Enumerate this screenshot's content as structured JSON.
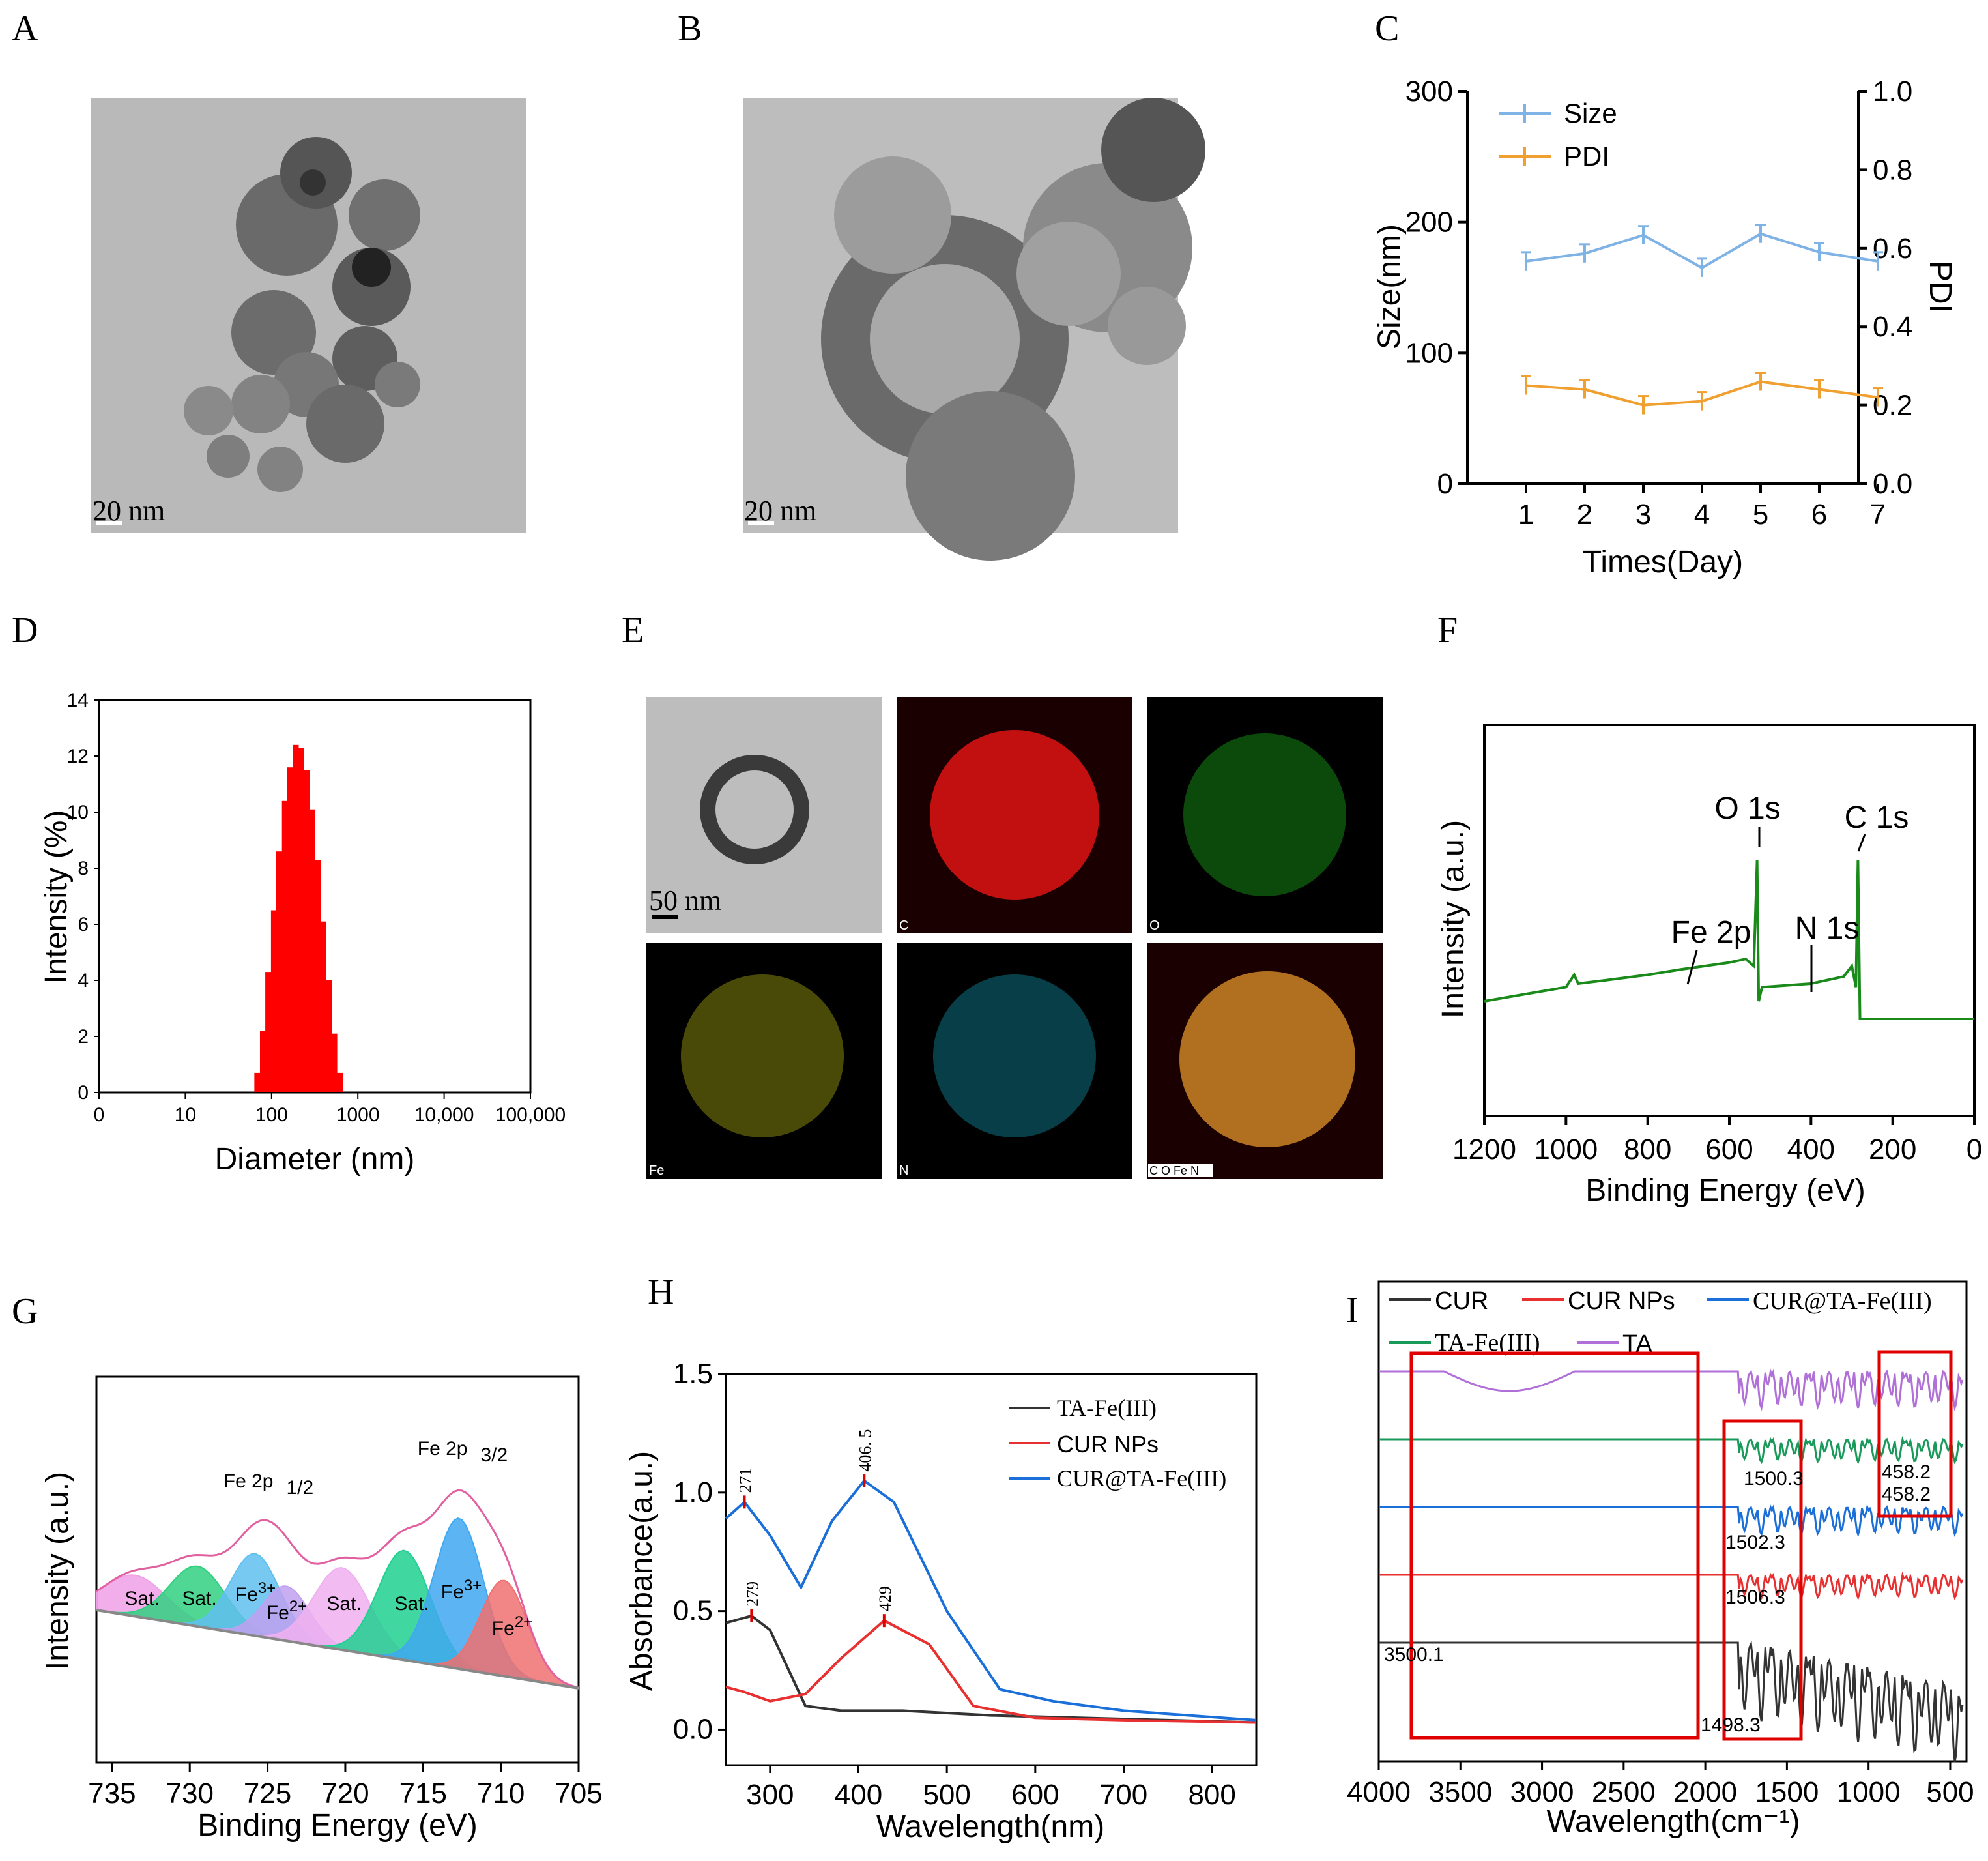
{
  "panels": {
    "A": {
      "letter": "A",
      "scale_bar": "20 nm"
    },
    "B": {
      "letter": "B",
      "scale_bar": "20 nm"
    },
    "C": {
      "letter": "C"
    },
    "D": {
      "letter": "D"
    },
    "E": {
      "letter": "E",
      "scale_bar": "50 nm",
      "maps": [
        "C",
        "O",
        "Fe",
        "N",
        "C O Fe N"
      ]
    },
    "F": {
      "letter": "F"
    },
    "G": {
      "letter": "G"
    },
    "H": {
      "letter": "H"
    },
    "I": {
      "letter": "I"
    }
  },
  "colors": {
    "size_line": "#7fb2e5",
    "pdi_line": "#f0a030",
    "dls_bar": "#ff0000",
    "xps_green": "#1a8a1a",
    "black": "#333333",
    "red": "#e83030",
    "blue": "#1a6fd8",
    "green": "#1a9a5a",
    "purple": "#b070d8",
    "box_red": "#e00000"
  },
  "chart_data": [
    {
      "panel": "C",
      "type": "line",
      "x": [
        1,
        2,
        3,
        4,
        5,
        6,
        7
      ],
      "xlabel": "Times(Day)",
      "ylabel": "Size(nm)",
      "y2label": "PDI",
      "ylim": [
        0,
        300
      ],
      "y2lim": [
        0,
        1.0
      ],
      "yticks": [
        "0",
        "100",
        "200",
        "300"
      ],
      "y2ticks": [
        "0.0",
        "0.2",
        "0.4",
        "0.6",
        "0.8",
        "1.0"
      ],
      "xticks": [
        "1",
        "2",
        "3",
        "4",
        "5",
        "6",
        "7"
      ],
      "series": [
        {
          "name": "Size",
          "axis": "left",
          "values": [
            170,
            176,
            190,
            165,
            191,
            177,
            170
          ]
        },
        {
          "name": "PDI",
          "axis": "right",
          "values": [
            0.25,
            0.24,
            0.2,
            0.21,
            0.26,
            0.24,
            0.22
          ]
        }
      ]
    },
    {
      "panel": "D",
      "type": "bar",
      "xlabel": "Diameter (nm)",
      "ylabel": "Intensity (%)",
      "xscale": "log",
      "xlim": [
        1,
        100000
      ],
      "ylim": [
        0,
        14
      ],
      "xticks": [
        "0",
        "10",
        "100",
        "1000",
        "10,000",
        "100,000"
      ],
      "yticks": [
        "0",
        "2",
        "4",
        "6",
        "8",
        "10",
        "12",
        "14"
      ],
      "x": [
        68,
        79,
        91,
        106,
        122,
        142,
        164,
        190,
        220,
        255,
        295,
        342,
        396,
        459,
        531,
        615
      ],
      "values": [
        0.7,
        2.2,
        4.3,
        6.5,
        8.6,
        10.4,
        11.6,
        12.4,
        12.3,
        11.5,
        10.1,
        8.3,
        6.1,
        4.0,
        2.1,
        0.7
      ]
    },
    {
      "panel": "F",
      "type": "line",
      "xlabel": "Binding Energy (eV)",
      "ylabel": "Intensity (a.u.)",
      "xlim": [
        1200,
        0
      ],
      "xticks": [
        "1200",
        "1000",
        "800",
        "600",
        "400",
        "200",
        "0"
      ],
      "annotations": [
        "O 1s",
        "C 1s",
        "Fe 2p",
        "N 1s"
      ],
      "x": [
        1200,
        1100,
        1000,
        980,
        970,
        900,
        800,
        720,
        600,
        560,
        540,
        532,
        528,
        520,
        400,
        320,
        300,
        290,
        285,
        280,
        200,
        100,
        0
      ],
      "values": [
        20,
        24,
        28,
        35,
        30,
        32,
        35,
        38,
        42,
        44,
        40,
        100,
        20,
        28,
        30,
        34,
        40,
        28,
        100,
        10,
        10,
        10,
        10
      ]
    },
    {
      "panel": "G",
      "type": "area",
      "xlabel": "Binding Energy (eV)",
      "ylabel": "Intensity (a.u.)",
      "xlim": [
        736,
        705
      ],
      "xticks": [
        "735",
        "730",
        "725",
        "720",
        "715",
        "710",
        "705"
      ],
      "peak_labels": [
        "Sat.",
        "Sat.",
        "Fe",
        "Fe",
        "Sat.",
        "Sat.",
        "Fe",
        "Fe"
      ],
      "region_labels": [
        "Fe 2p",
        "1/2",
        "Fe 2p",
        "3/2"
      ],
      "superscripts": [
        "3+",
        "2+",
        "3+",
        "2+"
      ],
      "components": [
        {
          "name": "Sat.",
          "center": 733.5,
          "height": 0.15,
          "width": 2.0,
          "color": "#f0a0e8"
        },
        {
          "name": "Sat.",
          "center": 729.5,
          "height": 0.22,
          "width": 1.8,
          "color": "#30d080"
        },
        {
          "name": "Fe3+",
          "center": 725.8,
          "height": 0.3,
          "width": 1.6,
          "color": "#60c0f0"
        },
        {
          "name": "Fe2+",
          "center": 723.8,
          "height": 0.2,
          "width": 1.5,
          "color": "#c0a0f0"
        },
        {
          "name": "Sat.",
          "center": 720.2,
          "height": 0.3,
          "width": 1.8,
          "color": "#f0b0f0"
        },
        {
          "name": "Sat.",
          "center": 716.2,
          "height": 0.4,
          "width": 1.7,
          "color": "#20d090"
        },
        {
          "name": "Fe3+",
          "center": 712.7,
          "height": 0.55,
          "width": 1.6,
          "color": "#40a8f0"
        },
        {
          "name": "Fe2+",
          "center": 709.8,
          "height": 0.35,
          "width": 1.5,
          "color": "#f07070"
        }
      ]
    },
    {
      "panel": "H",
      "type": "line",
      "xlabel": "Wavelength(nm)",
      "ylabel": "Absorbance(a.u.)",
      "xlim": [
        250,
        850
      ],
      "ylim": [
        -0.15,
        1.5
      ],
      "xticks": [
        "300",
        "400",
        "500",
        "600",
        "700",
        "800"
      ],
      "yticks": [
        "0.0",
        "0.5",
        "1.0",
        "1.5"
      ],
      "peaks": [
        "271",
        "406. 5",
        "279",
        "429"
      ],
      "series": [
        {
          "name": "TA-Fe(III)",
          "x": [
            250,
            279,
            300,
            340,
            380,
            450,
            550,
            650,
            750,
            850
          ],
          "values": [
            0.45,
            0.48,
            0.42,
            0.1,
            0.08,
            0.08,
            0.06,
            0.05,
            0.04,
            0.03
          ]
        },
        {
          "name": "CUR NPs",
          "x": [
            250,
            270,
            300,
            340,
            380,
            429,
            480,
            530,
            600,
            700,
            850
          ],
          "values": [
            0.18,
            0.16,
            0.12,
            0.15,
            0.3,
            0.46,
            0.36,
            0.1,
            0.05,
            0.04,
            0.03
          ]
        },
        {
          "name": "CUR@TA-Fe(III)",
          "x": [
            250,
            271,
            300,
            335,
            370,
            406.5,
            440,
            500,
            560,
            620,
            700,
            850
          ],
          "values": [
            0.89,
            0.96,
            0.82,
            0.6,
            0.88,
            1.05,
            0.96,
            0.5,
            0.17,
            0.12,
            0.08,
            0.04
          ]
        }
      ]
    },
    {
      "panel": "I",
      "type": "line",
      "xlabel": "Wavelength(cm⁻¹)",
      "xlim": [
        4000,
        400
      ],
      "xticks": [
        "4000",
        "3500",
        "3000",
        "2500",
        "2000",
        "1500",
        "1000",
        "500"
      ],
      "annotations": [
        "1500.3",
        "458.2",
        "1502.3",
        "458.2",
        "1506.3",
        "3500.1",
        "1498.3"
      ],
      "series": [
        {
          "name": "CUR"
        },
        {
          "name": "CUR NPs"
        },
        {
          "name": "CUR@TA-Fe(III)"
        },
        {
          "name": "TA-Fe(III)"
        },
        {
          "name": "TA"
        }
      ]
    }
  ]
}
